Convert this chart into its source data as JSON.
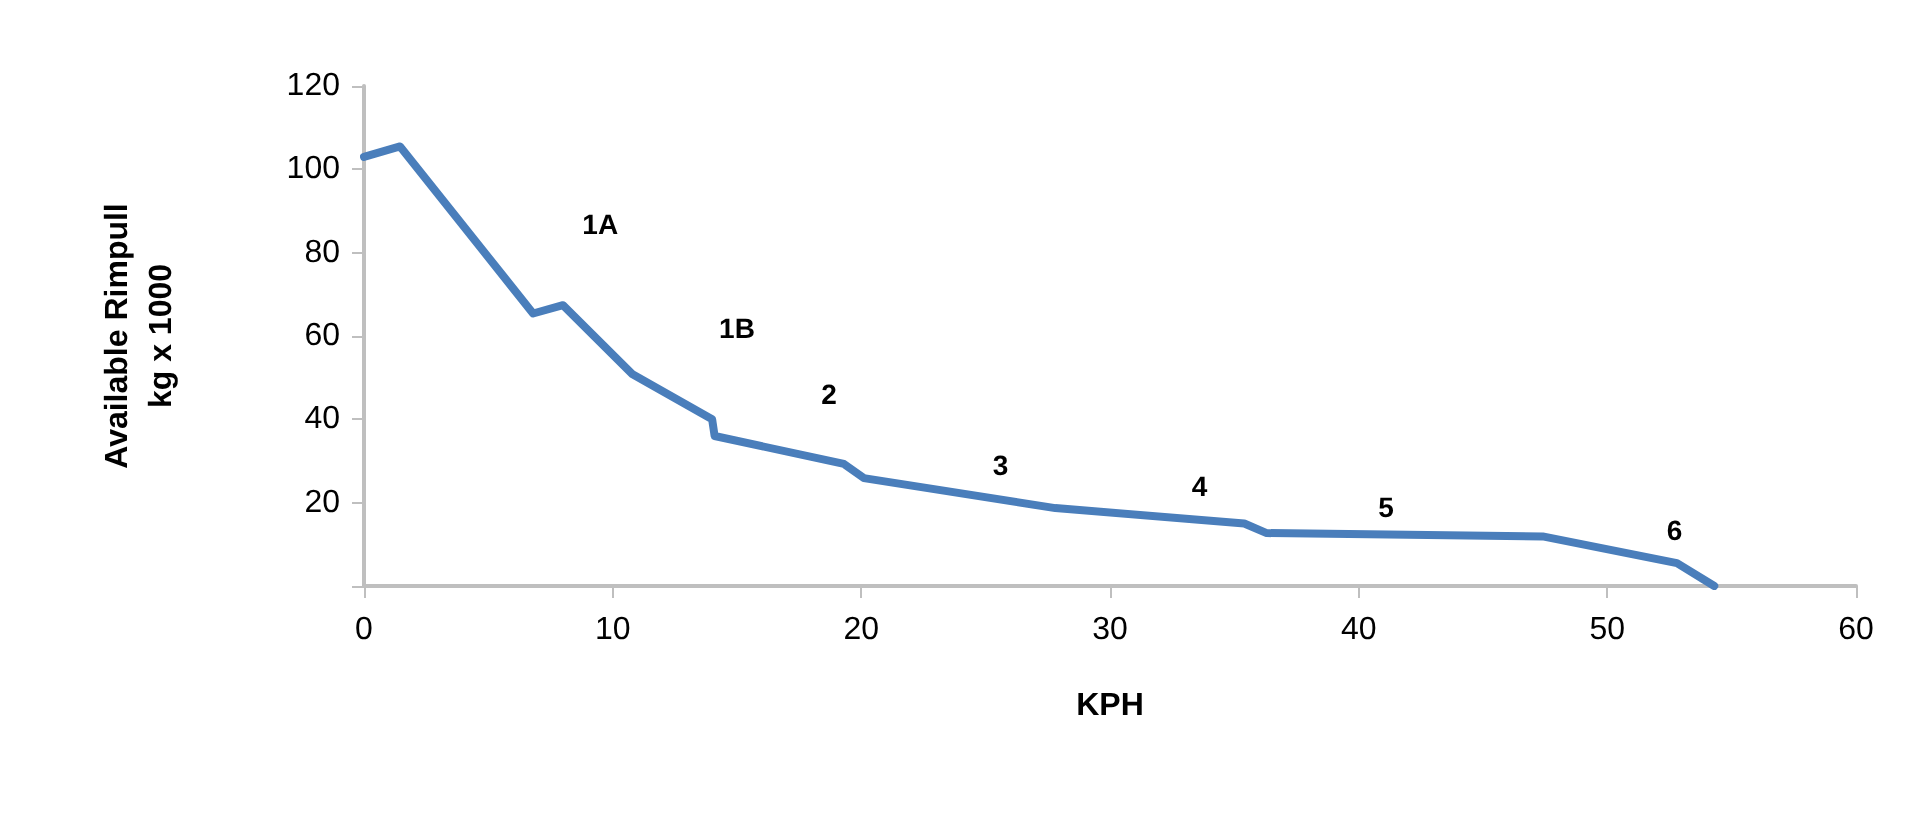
{
  "chart_data": {
    "type": "line",
    "xlabel": "KPH",
    "ylabel": "Available Rimpull\nkg x 1000",
    "x": [
      0,
      1.45,
      6.8,
      8.0,
      10.8,
      14.0,
      14.1,
      19.3,
      20.1,
      27.8,
      35.4,
      36.3,
      47.4,
      52.8,
      54.3
    ],
    "series": [
      {
        "color": "#4a7ebb",
        "values": [
          103,
          105.5,
          65.4,
          67.4,
          50.8,
          40,
          36,
          29.3,
          25.9,
          18.7,
          15,
          12.7,
          11.9,
          5.5,
          0
        ]
      }
    ],
    "xlim": [
      0,
      60
    ],
    "xticks": [
      0,
      10,
      20,
      30,
      40,
      50,
      60
    ],
    "ylim": [
      0,
      120
    ],
    "yticks": [
      {
        "value": 0,
        "label": null
      },
      20,
      40,
      60,
      80,
      100,
      120
    ],
    "grid": false,
    "marker": "none",
    "line_style": "solid",
    "annotations": [
      "1A",
      "1B",
      "2",
      "3",
      "4",
      "5",
      "6"
    ]
  }
}
